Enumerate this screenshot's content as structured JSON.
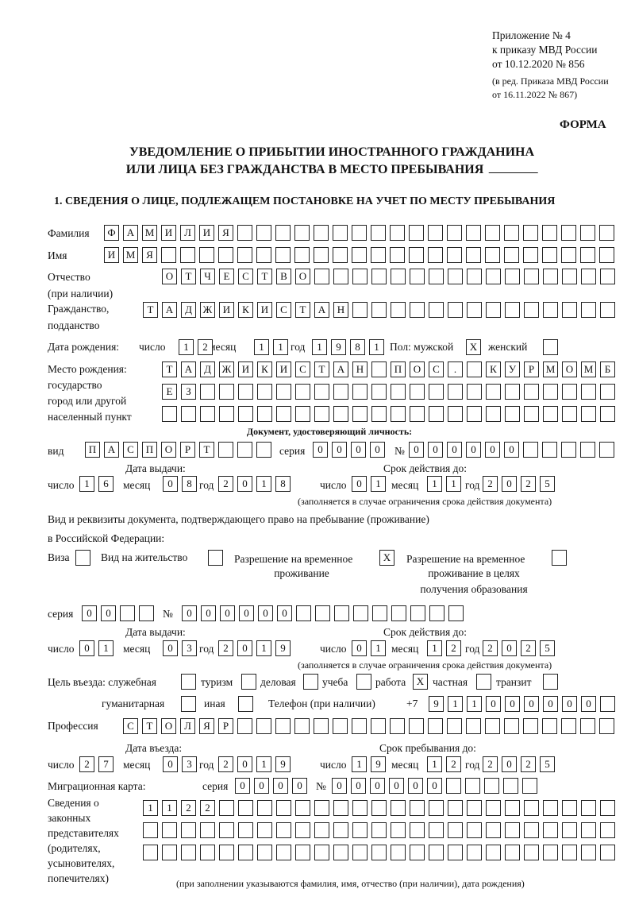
{
  "header": {
    "appendix": "Приложение № 4",
    "order": "к приказу МВД России",
    "date": "от 10.12.2020 № 856",
    "edition1": "(в ред. Приказа МВД России",
    "edition2": "от 16.11.2022 № 867)",
    "form": "ФОРМА"
  },
  "title": {
    "line1": "УВЕДОМЛЕНИЕ О ПРИБЫТИИ ИНОСТРАННОГО ГРАЖДАНИНА",
    "line2": "ИЛИ ЛИЦА БЕЗ ГРАЖДАНСТВА В МЕСТО ПРЕБЫВАНИЯ"
  },
  "section1": "1. СВЕДЕНИЯ О ЛИЦЕ, ПОДЛЕЖАЩЕМ ПОСТАНОВКЕ НА УЧЕТ ПО МЕСТУ ПРЕБЫВАНИЯ",
  "labels": {
    "surname": "Фамилия",
    "name": "Имя",
    "patronymic": "Отчество",
    "patronymic_note": "(при наличии)",
    "citizenship": "Гражданство,",
    "citizenship2": "подданство",
    "birth_date": "Дата рождения:",
    "day": "число",
    "month": "месяц",
    "year": "год",
    "sex": "Пол: мужской",
    "female": "женский",
    "birth_place": "Место рождения:",
    "birth_place2": "государство",
    "birth_place3": "город или другой",
    "birth_place4": "населенный пункт",
    "id_doc": "Документ, удостоверяющий личность:",
    "kind": "вид",
    "series": "серия",
    "number": "№",
    "issue_date": "Дата выдачи:",
    "valid_until": "Срок действия до:",
    "validity_note": "(заполняется в случае ограничения срока действия документа)",
    "stay_doc1": "Вид и реквизиты документа, подтверждающего право на пребывание (проживание)",
    "stay_doc2": "в Российской Федерации:",
    "visa": "Виза",
    "residence": "Вид на жительство",
    "temp_res1": "Разрешение на временное",
    "temp_res2": "проживание",
    "temp_edu1": "Разрешение на временное",
    "temp_edu2": "проживание в целях",
    "temp_edu3": "получения образования",
    "purpose": "Цель въезда: служебная",
    "tourism": "туризм",
    "business": "деловая",
    "study": "учеба",
    "work": "работа",
    "private": "частная",
    "transit": "транзит",
    "humanitarian": "гуманитарная",
    "other": "иная",
    "phone": "Телефон (при наличии)",
    "phone_code": "+7",
    "profession": "Профессия",
    "entry_date": "Дата въезда:",
    "stay_until": "Срок пребывания до:",
    "migration_card": "Миграционная карта:",
    "reps1": "Сведения о",
    "reps2": "законных",
    "reps3": "представителях",
    "reps4": "(родителях,",
    "reps5": "усыновителях,",
    "reps6": "попечителях)",
    "reps_note": "(при заполнении указываются фамилия, имя, отчество (при наличии), дата рождения)"
  },
  "fields": {
    "surname": "ФАМИЛИЯ",
    "name": "ИМЯ",
    "patronymic": "ОТЧЕСТВО",
    "citizenship": "ТАДЖИКИСТАН",
    "birth_day": "12",
    "birth_month": "11",
    "birth_year": "1981",
    "sex_male": "X",
    "sex_female": "",
    "birth_place1": "ТАДЖИКИСТАН ПОС. КУРМОМБ",
    "birth_place2": "ЕЗ",
    "birth_place3": "",
    "doc_kind": "ПАСПОРТ",
    "doc_series": "0000",
    "doc_number": "000000",
    "doc_issue_day": "16",
    "doc_issue_month": "08",
    "doc_issue_year": "2018",
    "doc_valid_day": "01",
    "doc_valid_month": "11",
    "doc_valid_year": "2025",
    "visa": "",
    "residence_permit": "",
    "temp_residence": "X",
    "temp_residence_edu": "",
    "stay_series": "00",
    "stay_number": "000000",
    "stay_issue_day": "01",
    "stay_issue_month": "03",
    "stay_issue_year": "2019",
    "stay_valid_day": "01",
    "stay_valid_month": "12",
    "stay_valid_year": "2025",
    "purpose_service": "",
    "purpose_tourism": "",
    "purpose_business": "",
    "purpose_study": "",
    "purpose_work": "X",
    "purpose_private": "",
    "purpose_transit": "",
    "purpose_humanitarian": "",
    "purpose_other": "",
    "phone": "911000000",
    "profession": "СТОЛЯР",
    "entry_day": "27",
    "entry_month": "03",
    "entry_year": "2019",
    "stay_until_day": "19",
    "stay_until_month": "12",
    "stay_until_year": "2025",
    "mc_series": "0000",
    "mc_number": "000000",
    "reps1": "1122",
    "reps2": "",
    "reps3": ""
  }
}
